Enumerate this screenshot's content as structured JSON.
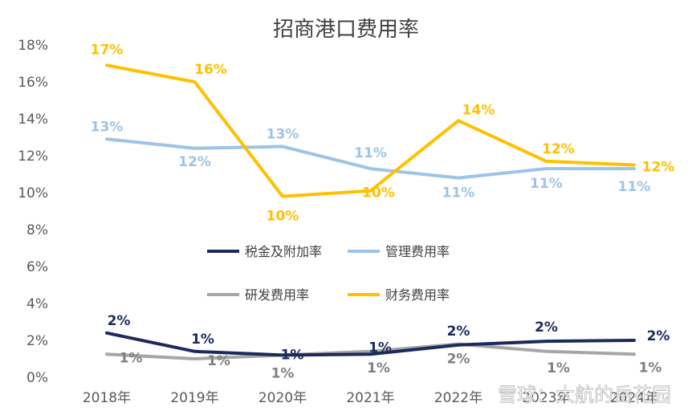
{
  "chart_data": {
    "type": "line",
    "title": "招商港口费用率",
    "categories": [
      "2018年",
      "2019年",
      "2020年",
      "2021年",
      "2022年",
      "2023年",
      "2024年"
    ],
    "y_ticks": [
      "0%",
      "2%",
      "4%",
      "6%",
      "8%",
      "10%",
      "12%",
      "14%",
      "16%",
      "18%"
    ],
    "ylim": [
      0,
      18
    ],
    "grid": false,
    "legend_position": "center",
    "series": [
      {
        "name": "税金及附加率",
        "color": "#1b2a5c",
        "values": [
          2.4,
          1.4,
          1.2,
          1.25,
          1.75,
          1.95,
          2.0
        ],
        "labels": [
          "2%",
          "1%",
          "1%",
          "1%",
          "2%",
          "2%",
          "2%"
        ]
      },
      {
        "name": "管理费用率",
        "color": "#9dc3e6",
        "values": [
          12.9,
          12.4,
          12.5,
          11.3,
          10.8,
          11.3,
          11.3
        ],
        "labels": [
          "13%",
          "12%",
          "13%",
          "11%",
          "11%",
          "11%",
          "11%"
        ]
      },
      {
        "name": "研发费用率",
        "color": "#a6a6a6",
        "values": [
          1.25,
          1.0,
          1.2,
          1.4,
          1.8,
          1.4,
          1.25
        ],
        "labels": [
          "1%",
          "1%",
          "1%",
          "1%",
          "2%",
          "1%",
          "1%"
        ]
      },
      {
        "name": "财务费用率",
        "color": "#ffc000",
        "values": [
          16.9,
          16.0,
          9.8,
          10.1,
          13.9,
          11.7,
          11.5
        ],
        "labels": [
          "17%",
          "16%",
          "10%",
          "10%",
          "14%",
          "12%",
          "12%"
        ]
      }
    ]
  },
  "watermark": "雪球：大航的岳花园"
}
